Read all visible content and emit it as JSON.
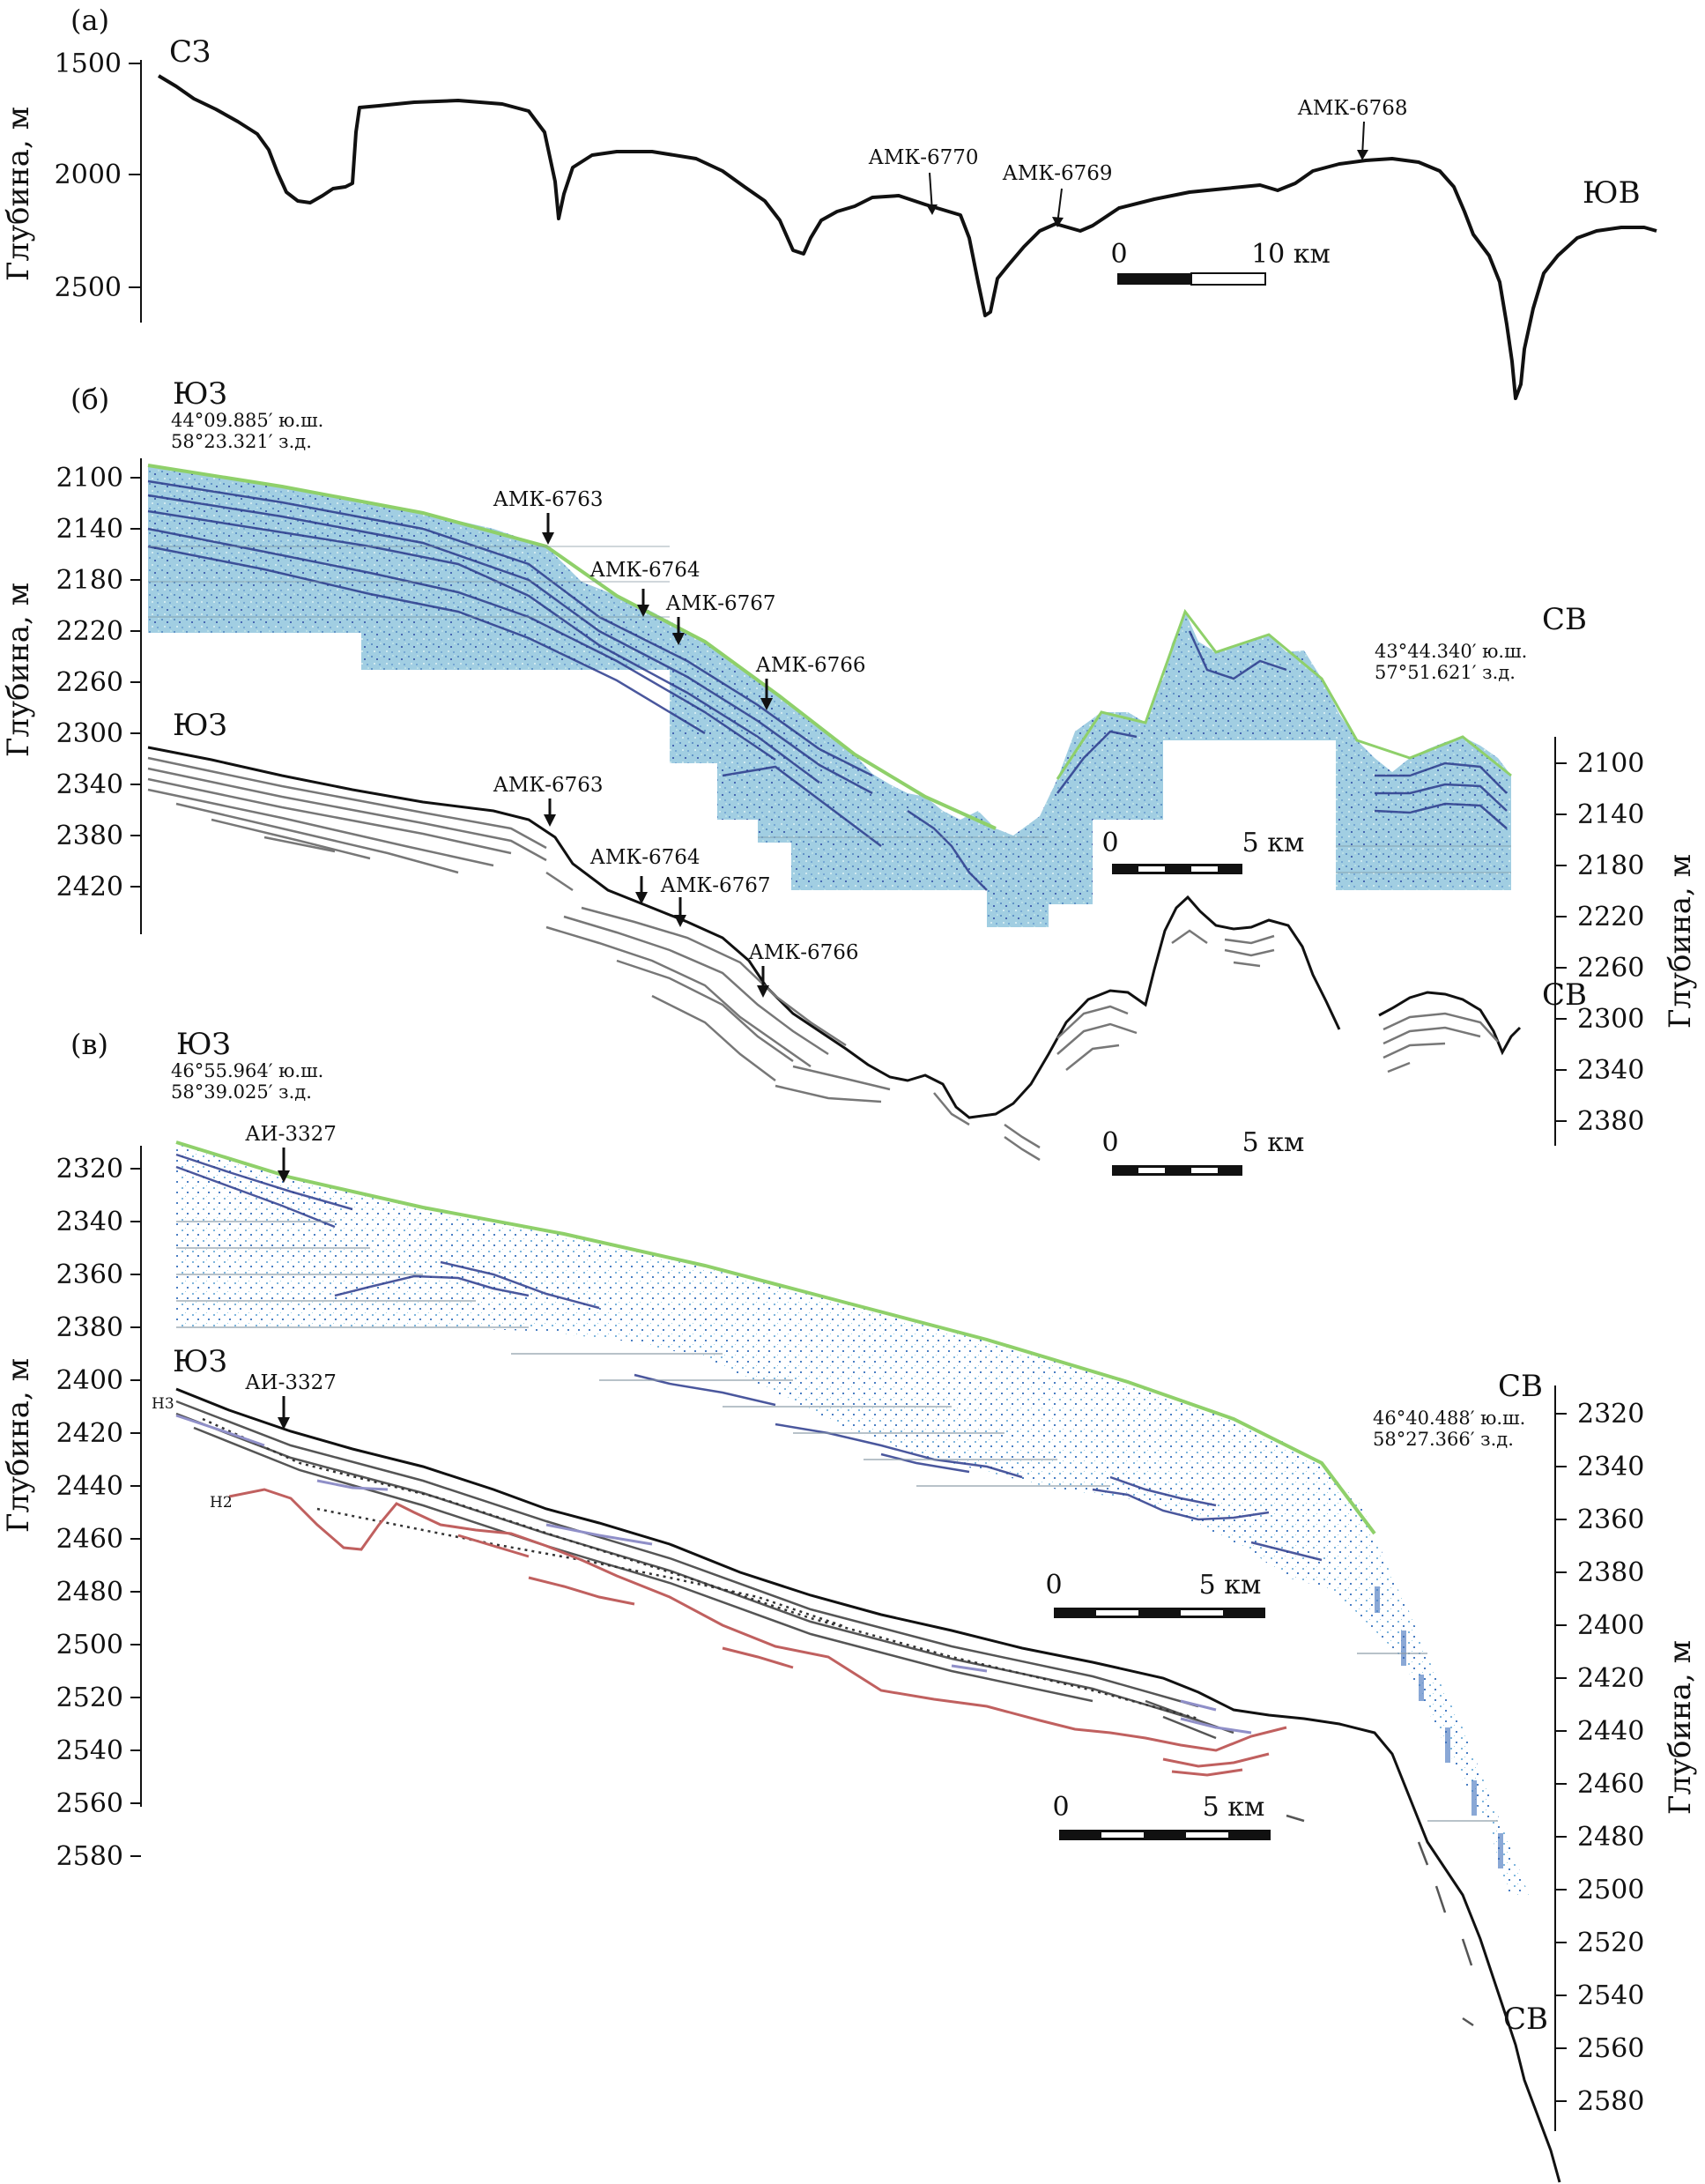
{
  "panels": {
    "a": {
      "letter": "(а)",
      "ylabel": "Глубина, м",
      "ticks": [
        "1500",
        "2000",
        "2500"
      ],
      "dir_left": "СЗ",
      "dir_right": "ЮВ",
      "stations": [
        "АМК-6770",
        "АМК-6769",
        "АМК-6768"
      ],
      "scale": {
        "start": "0",
        "end": "10 км"
      }
    },
    "b": {
      "letter": "(б)",
      "ylabel_left": "Глубина, м",
      "ylabel_right": "Глубина, м",
      "ticks_left": [
        "2100",
        "2140",
        "2180",
        "2220",
        "2260",
        "2300",
        "2340",
        "2380",
        "2420"
      ],
      "ticks_right": [
        "2100",
        "2140",
        "2180",
        "2220",
        "2260",
        "2300",
        "2340",
        "2380"
      ],
      "dir_top_left": "ЮЗ",
      "dir_top_right": "СВ",
      "dir_bottom_left": "ЮЗ",
      "dir_bottom_right": "СВ",
      "coord_left_lat": "44°09.885′ ю.ш.",
      "coord_left_lon": "58°23.321′ з.д.",
      "coord_right_lat": "43°44.340′ ю.ш.",
      "coord_right_lon": "57°51.621′ з.д.",
      "stations": [
        "АМК-6763",
        "АМК-6764",
        "АМК-6767",
        "АМК-6766"
      ],
      "scale": {
        "start": "0",
        "end": "5 км"
      }
    },
    "c": {
      "letter": "(в)",
      "ylabel_left": "Глубина, м",
      "ylabel_right": "Глубина, м",
      "ticks_left": [
        "2320",
        "2340",
        "2360",
        "2380",
        "2400",
        "2420",
        "2440",
        "2460",
        "2480",
        "2500",
        "2520",
        "2540",
        "2560",
        "2580"
      ],
      "ticks_right": [
        "2320",
        "2340",
        "2360",
        "2380",
        "2400",
        "2420",
        "2440",
        "2460",
        "2480",
        "2500",
        "2520",
        "2540",
        "2560",
        "2580"
      ],
      "dir_top_left": "ЮЗ",
      "dir_top_right": "СВ",
      "dir_bottom_left": "ЮЗ",
      "dir_bottom_right": "СВ",
      "coord_left_lat": "46°55.964′ ю.ш.",
      "coord_left_lon": "58°39.025′ з.д.",
      "coord_right_lat": "46°40.488′ ю.ш.",
      "coord_right_lon": "58°27.366′ з.д.",
      "stations": [
        "АИ-3327"
      ],
      "horizons": [
        "Н3",
        "Н2"
      ],
      "scale": {
        "start": "0",
        "end": "5 км"
      }
    }
  },
  "colors": {
    "profile": "#111111",
    "seismic_bg": "#8fc3dc",
    "reflector_dark": "#2b3a8c",
    "seafloor_green": "#8fd06a",
    "interp_grey": "#808080",
    "h2_red": "#c0605f",
    "h3_purple": "#8f8fc8"
  }
}
